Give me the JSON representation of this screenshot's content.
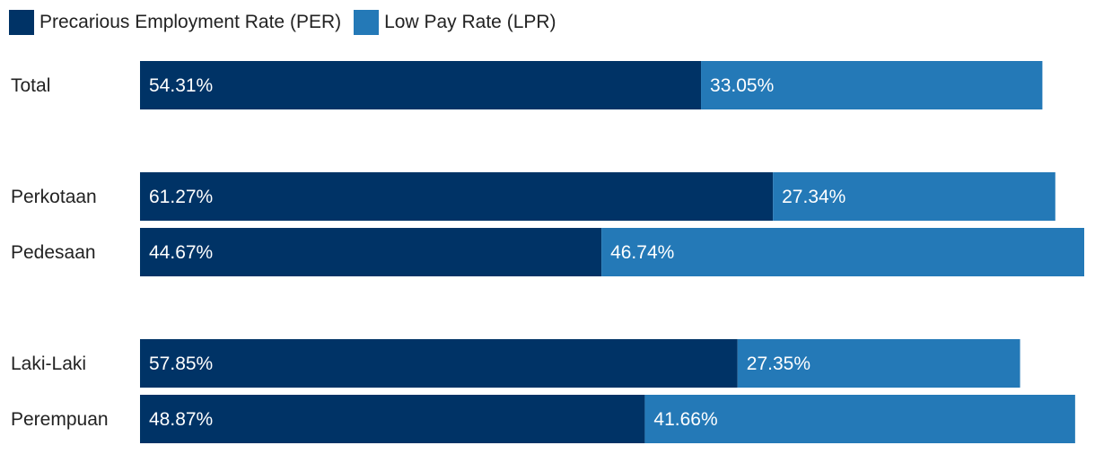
{
  "legend": {
    "per_label": "Precarious Employment Rate (PER)",
    "lpr_label": "Low Pay Rate (LPR)"
  },
  "colors": {
    "per": "#003366",
    "lpr": "#2479b7"
  },
  "chart_data": {
    "type": "bar",
    "orientation": "horizontal",
    "stacked": true,
    "title": "",
    "xlabel": "",
    "ylabel": "",
    "legend_position": "top-left",
    "grid": false,
    "xlim": [
      0,
      91.41
    ],
    "categories": [
      "Total",
      "Perkotaan",
      "Pedesaan",
      "Laki-Laki",
      "Perempuan"
    ],
    "groups": [
      [
        "Total"
      ],
      [
        "Perkotaan",
        "Pedesaan"
      ],
      [
        "Laki-Laki",
        "Perempuan"
      ]
    ],
    "series": [
      {
        "name": "Precarious Employment Rate (PER)",
        "values": [
          54.31,
          61.27,
          44.67,
          57.85,
          48.87
        ],
        "labels": [
          "54.31%",
          "61.27%",
          "44.67%",
          "57.85%",
          "48.87%"
        ]
      },
      {
        "name": "Low Pay Rate (LPR)",
        "values": [
          33.05,
          27.34,
          46.74,
          27.35,
          41.66
        ],
        "labels": [
          "33.05%",
          "27.34%",
          "46.74%",
          "27.35%",
          "41.66%"
        ]
      }
    ]
  }
}
